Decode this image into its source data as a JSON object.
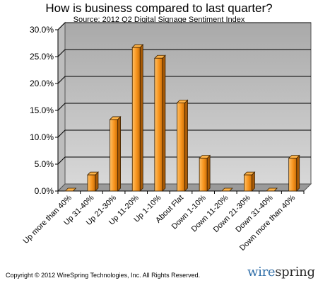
{
  "header": {
    "title": "How is business compared to last quarter?",
    "subtitle": "Source: 2012 Q2 Digital Signage Sentiment Index"
  },
  "footer": {
    "copyright": "Copyright © 2012 WireSpring Technologies, Inc. All Rights Reserved.",
    "logo_part1": "wire",
    "logo_part2": "spring"
  },
  "chart_data": {
    "type": "bar",
    "title": "How is business compared to last quarter?",
    "subtitle": "Source: 2012 Q2 Digital Signage Sentiment Index",
    "categories": [
      "Up more than 40%",
      "Up 31-40%",
      "Up 21-30%",
      "Up 11-20%",
      "Up 1-10%",
      "About Flat",
      "Down 1-10%",
      "Down 11-20%",
      "Down 21-30%",
      "Down 31-40%",
      "Down more than 40%"
    ],
    "values": [
      0.0,
      3.0,
      13.3,
      26.7,
      24.7,
      16.4,
      6.1,
      0.0,
      3.0,
      0.0,
      6.1
    ],
    "yticks": [
      "0.0%",
      "5.0%",
      "10.0%",
      "15.0%",
      "20.0%",
      "25.0%",
      "30.0%"
    ],
    "ylim": [
      0,
      30
    ],
    "xlabel": "",
    "ylabel": "",
    "grid": true,
    "bar_color": "#f7941d",
    "bar_dark_color": "#a85a06",
    "wall_color": "#d8d8d8"
  }
}
